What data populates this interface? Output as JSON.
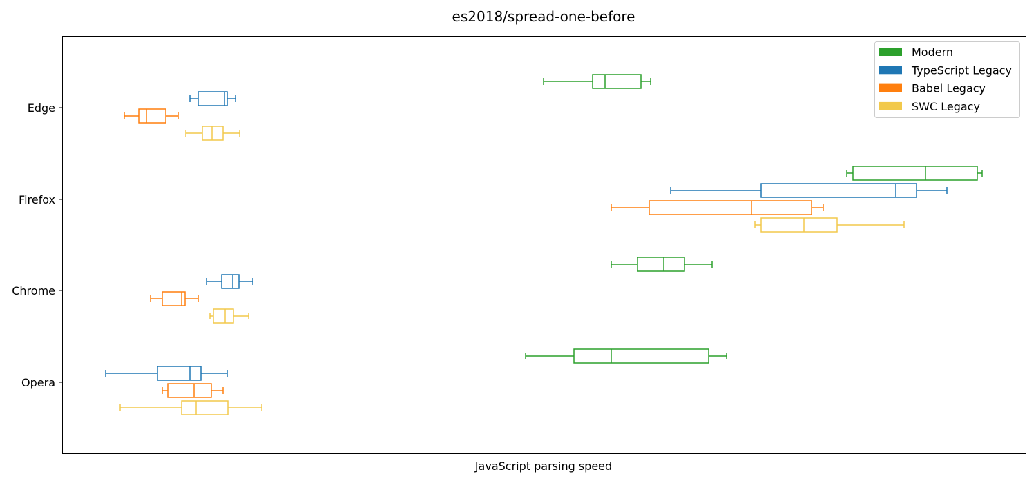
{
  "chart_data": {
    "type": "boxplot",
    "orientation": "horizontal",
    "title": "es2018/spread-one-before",
    "xlabel": "JavaScript parsing speed",
    "ylabel": "",
    "xticks": "hidden",
    "xlim": [
      0,
      1395
    ],
    "grid": false,
    "legend_position": "top-right",
    "categories": [
      "Edge",
      "Firefox",
      "Chrome",
      "Opera"
    ],
    "series": [
      {
        "name": "Modern",
        "color": "#2ca02c",
        "boxes": [
          {
            "whislo": 697,
            "q1": 768,
            "med": 786,
            "q3": 838,
            "whishi": 852
          },
          {
            "whislo": 1136,
            "q1": 1145,
            "med": 1250,
            "q3": 1325,
            "whishi": 1332
          },
          {
            "whislo": 795,
            "q1": 833,
            "med": 871,
            "q3": 901,
            "whishi": 941
          },
          {
            "whislo": 671,
            "q1": 741,
            "med": 795,
            "q3": 936,
            "whishi": 962
          }
        ]
      },
      {
        "name": "TypeScript Legacy",
        "color": "#1f77b4",
        "boxes": [
          {
            "whislo": 185,
            "q1": 197,
            "med": 235,
            "q3": 239,
            "whishi": 251
          },
          {
            "whislo": 881,
            "q1": 1012,
            "med": 1207,
            "q3": 1237,
            "whishi": 1281
          },
          {
            "whislo": 209,
            "q1": 231,
            "med": 247,
            "q3": 256,
            "whishi": 276
          },
          {
            "whislo": 63,
            "q1": 138,
            "med": 185,
            "q3": 201,
            "whishi": 239
          }
        ]
      },
      {
        "name": "Babel Legacy",
        "color": "#ff7f0e",
        "boxes": [
          {
            "whislo": 90,
            "q1": 111,
            "med": 122,
            "q3": 150,
            "whishi": 168
          },
          {
            "whislo": 795,
            "q1": 850,
            "med": 998,
            "q3": 1085,
            "whishi": 1102
          },
          {
            "whislo": 128,
            "q1": 145,
            "med": 173,
            "q3": 178,
            "whishi": 197
          },
          {
            "whislo": 145,
            "q1": 153,
            "med": 191,
            "q3": 216,
            "whishi": 233
          }
        ]
      },
      {
        "name": "SWC Legacy",
        "color": "#f2c94c",
        "boxes": [
          {
            "whislo": 179,
            "q1": 203,
            "med": 217,
            "q3": 233,
            "whishi": 257
          },
          {
            "whislo": 1003,
            "q1": 1012,
            "med": 1074,
            "q3": 1122,
            "whishi": 1219
          },
          {
            "whislo": 214,
            "q1": 219,
            "med": 236,
            "q3": 248,
            "whishi": 270
          },
          {
            "whislo": 84,
            "q1": 173,
            "med": 194,
            "q3": 240,
            "whishi": 289
          }
        ]
      }
    ]
  }
}
